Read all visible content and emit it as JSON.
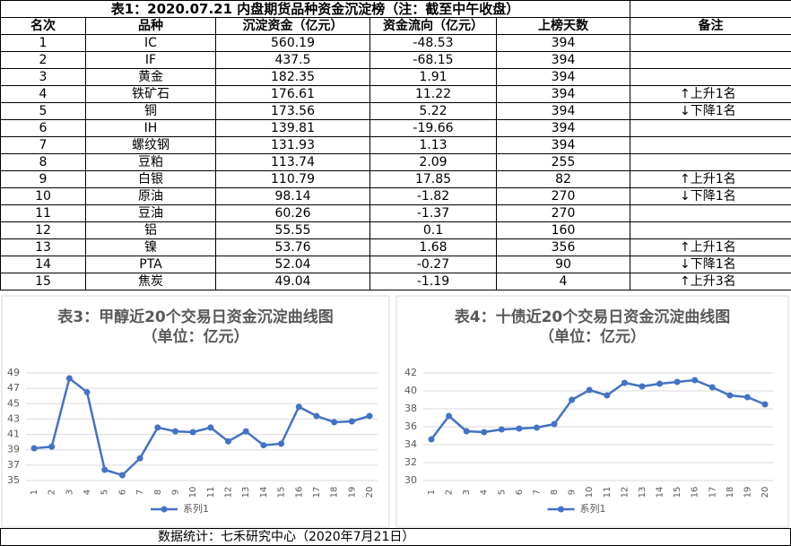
{
  "table": {
    "title": "表1：2020.07.21 内盘期货品种资金沉淀榜（注：截至中午收盘）",
    "header": [
      "名次",
      "品种",
      "沉淀资金（亿元）",
      "资金流向（亿元）",
      "上榜天数",
      "备注"
    ],
    "rows": [
      [
        "1",
        "IC",
        "560.19",
        "-48.53",
        "394",
        null
      ],
      [
        "2",
        "IF",
        "437.5",
        "-68.15",
        "394",
        null
      ],
      [
        "3",
        "黄金",
        "182.35",
        "1.91",
        "394",
        null
      ],
      [
        "4",
        "铁矿石",
        "176.61",
        "11.22",
        "394",
        "↑上升1名"
      ],
      [
        "5",
        "铜",
        "173.56",
        "5.22",
        "394",
        "↓下降1名"
      ],
      [
        "6",
        "IH",
        "139.81",
        "-19.66",
        "394",
        null
      ],
      [
        "7",
        "螺纹钢",
        "131.93",
        "1.13",
        "394",
        null
      ],
      [
        "8",
        "豆粕",
        "113.74",
        "2.09",
        "255",
        null
      ],
      [
        "9",
        "白银",
        "110.79",
        "17.85",
        "82",
        "↑上升1名"
      ],
      [
        "10",
        "原油",
        "98.14",
        "-1.82",
        "270",
        "↓下降1名"
      ],
      [
        "11",
        "豆油",
        "60.26",
        "-1.37",
        "270",
        null
      ],
      [
        "12",
        "铝",
        "55.55",
        "0.1",
        "160",
        null
      ],
      [
        "13",
        "镍",
        "53.76",
        "1.68",
        "356",
        "↑上升1名"
      ],
      [
        "14",
        "PTA",
        "52.04",
        "-0.27",
        "90",
        "↓下降1名"
      ],
      [
        "15",
        "焦炭",
        "49.04",
        "-1.19",
        "4",
        "↑上升3名"
      ]
    ]
  },
  "chart_data": [
    {
      "type": "line",
      "title": "表3：甲醇近20个交易日资金沉淀曲线图",
      "subtitle": "（单位：亿元）",
      "categories": [
        "1",
        "2",
        "3",
        "4",
        "5",
        "6",
        "7",
        "8",
        "9",
        "10",
        "11",
        "12",
        "13",
        "14",
        "15",
        "16",
        "17",
        "18",
        "19",
        "20"
      ],
      "series": [
        {
          "name": "系列1",
          "color": "#4472c4",
          "values": [
            39.2,
            39.4,
            48.3,
            46.5,
            36.4,
            35.7,
            37.9,
            41.9,
            41.4,
            41.3,
            41.9,
            40.1,
            41.4,
            39.6,
            39.8,
            44.6,
            43.4,
            42.6,
            42.7,
            43.4
          ]
        }
      ],
      "ylim": [
        35,
        49
      ],
      "yticks": [
        35,
        37,
        39,
        41,
        43,
        45,
        47,
        49
      ],
      "grid": true,
      "legend": "bottom"
    },
    {
      "type": "line",
      "title": "表4：十债近20个交易日资金沉淀曲线图",
      "subtitle": "（单位：亿元）",
      "categories": [
        "1",
        "2",
        "3",
        "4",
        "5",
        "6",
        "7",
        "8",
        "9",
        "10",
        "11",
        "12",
        "13",
        "14",
        "15",
        "16",
        "17",
        "18",
        "19",
        "20"
      ],
      "series": [
        {
          "name": "系列1",
          "color": "#4472c4",
          "values": [
            34.6,
            37.2,
            35.5,
            35.4,
            35.7,
            35.8,
            35.9,
            36.3,
            39.0,
            40.1,
            39.5,
            40.9,
            40.5,
            40.8,
            41.0,
            41.2,
            40.4,
            39.5,
            39.3,
            38.5
          ]
        }
      ],
      "ylim": [
        30,
        42
      ],
      "yticks": [
        30,
        32,
        34,
        36,
        38,
        40,
        42
      ],
      "grid": true,
      "legend": "bottom"
    }
  ],
  "footer": "数据统计：七禾研究中心（2020年7月21日）"
}
